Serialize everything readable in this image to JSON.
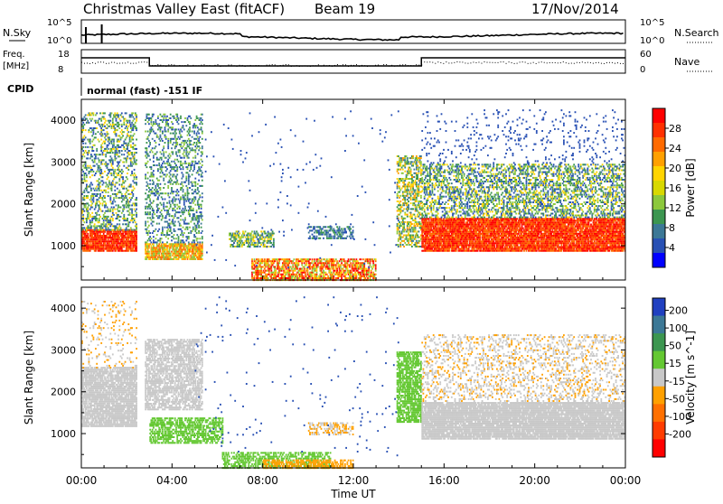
{
  "header": {
    "title": "Christmas Valley East (fitACF)",
    "beam": "Beam 19",
    "date": "17/Nov/2014"
  },
  "panels": {
    "nsky": {
      "label": "N.Sky",
      "ticks": [
        "10^5",
        "10^0"
      ]
    },
    "nsearch": {
      "label": "N.Search",
      "ticks": [
        "10^5",
        "10^0"
      ]
    },
    "freq": {
      "label1": "Freq.",
      "label2": "[MHz]",
      "ticks": [
        "18",
        "8"
      ]
    },
    "nave": {
      "label": "Nave",
      "ticks": [
        "60",
        "0"
      ]
    },
    "cpid": {
      "label": "CPID",
      "value": "normal (fast) -151 IF"
    }
  },
  "colorbars": {
    "power": {
      "label": "Power [dB]",
      "ticks": [
        "28",
        "24",
        "20",
        "16",
        "12",
        "8",
        "4"
      ],
      "colors": [
        "#ff0000",
        "#ff3000",
        "#ff6a00",
        "#ffa000",
        "#ffd400",
        "#d8d800",
        "#8cc83c",
        "#3c9650",
        "#3c7896",
        "#2850b4",
        "#0000ff"
      ]
    },
    "velocity": {
      "label": "Velocity [m s^-1]",
      "ticks": [
        "200",
        "100",
        "50",
        "15",
        "-15",
        "-50",
        "-100",
        "-200"
      ],
      "colors": [
        "#2040c0",
        "#3c7896",
        "#3c9650",
        "#64c832",
        "#c8c8c8",
        "#ffa000",
        "#ff7000",
        "#ff3c00",
        "#ff0000"
      ]
    }
  },
  "axes": {
    "ylabel": "Slant Range [km]",
    "xlabel": "Time UT",
    "x_ticks": [
      "00:00",
      "04:00",
      "08:00",
      "12:00",
      "16:00",
      "20:00",
      "00:00"
    ],
    "y_ticks": [
      "4000",
      "3000",
      "2000",
      "1000"
    ]
  },
  "chart_data": [
    {
      "type": "heatmap",
      "title": "",
      "quantity": "Power [dB]",
      "xlabel": "Time UT",
      "ylabel": "Slant Range [km]",
      "xlim_hours": [
        0,
        24
      ],
      "ylim_km": [
        180,
        4500
      ],
      "scale": [
        0,
        30
      ],
      "echo_regions": [
        {
          "t": [
            0.0,
            2.4
          ],
          "range_km": [
            900,
            4200
          ],
          "power": "high near 1000 km"
        },
        {
          "t": [
            2.8,
            5.3
          ],
          "range_km": [
            700,
            4200
          ],
          "power": "medium"
        },
        {
          "t": [
            6.5,
            8.5
          ],
          "range_km": [
            1000,
            1400
          ],
          "power": "low-medium"
        },
        {
          "t": [
            7.5,
            13.0
          ],
          "range_km": [
            200,
            700
          ],
          "power": "high"
        },
        {
          "t": [
            10.0,
            12.0
          ],
          "range_km": [
            1200,
            1500
          ],
          "power": "low"
        },
        {
          "t": [
            13.9,
            15.0
          ],
          "range_km": [
            1000,
            3200
          ],
          "power": "medium"
        },
        {
          "t": [
            15.0,
            24.0
          ],
          "range_km": [
            900,
            1700
          ],
          "power": "high"
        },
        {
          "t": [
            15.0,
            24.0
          ],
          "range_km": [
            1700,
            3000
          ],
          "power": "medium"
        }
      ]
    },
    {
      "type": "heatmap",
      "title": "",
      "quantity": "Velocity [m s^-1]",
      "xlabel": "Time UT",
      "ylabel": "Slant Range [km]",
      "xlim_hours": [
        0,
        24
      ],
      "ylim_km": [
        180,
        4500
      ],
      "scale": [
        -200,
        200
      ],
      "echo_regions": [
        {
          "t": [
            0.0,
            2.4
          ],
          "range_km": [
            1200,
            2600
          ],
          "velocity": "near zero (ground scatter)"
        },
        {
          "t": [
            2.8,
            5.3
          ],
          "range_km": [
            1600,
            3300
          ],
          "velocity": "near zero"
        },
        {
          "t": [
            3.0,
            6.2
          ],
          "range_km": [
            800,
            1400
          ],
          "velocity": "about +50"
        },
        {
          "t": [
            6.2,
            11.0
          ],
          "range_km": [
            200,
            600
          ],
          "velocity": "about +50"
        },
        {
          "t": [
            8.0,
            12.0
          ],
          "range_km": [
            200,
            400
          ],
          "velocity": "about -50"
        },
        {
          "t": [
            13.9,
            15.0
          ],
          "range_km": [
            1300,
            3000
          ],
          "velocity": "about +50"
        },
        {
          "t": [
            15.0,
            24.0
          ],
          "range_km": [
            900,
            1800
          ],
          "velocity": "near zero"
        }
      ]
    }
  ]
}
